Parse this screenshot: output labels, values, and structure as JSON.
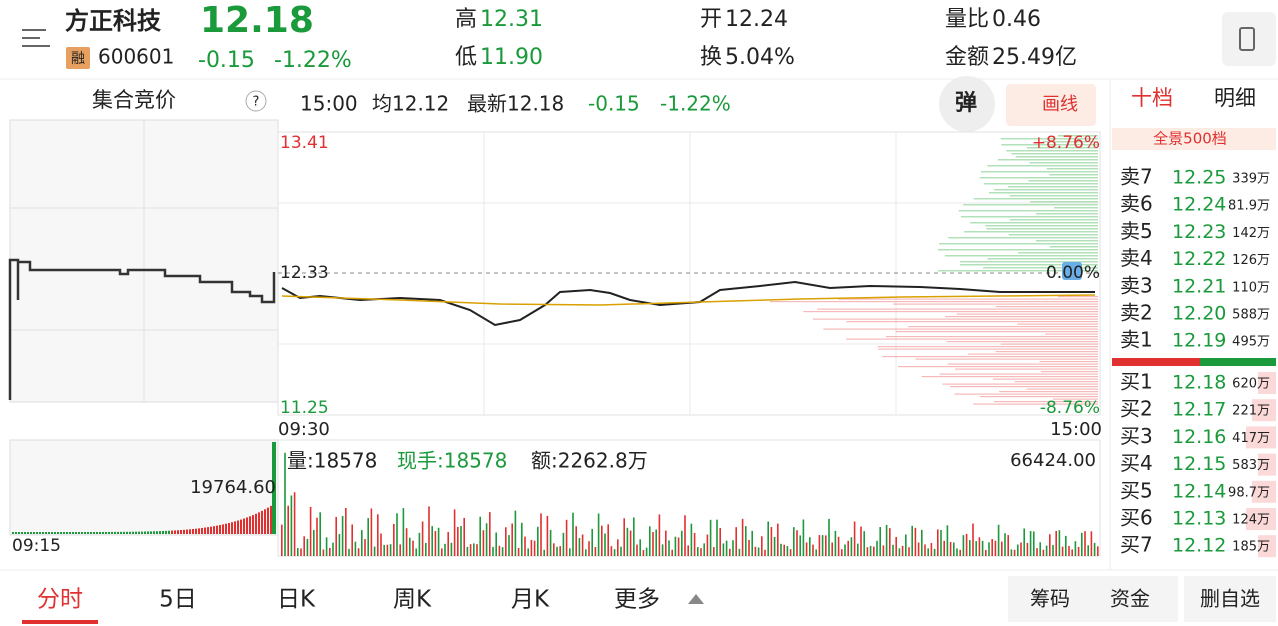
{
  "header": {
    "name": "方正科技",
    "badge": "融",
    "code": "600601",
    "price": "12.18",
    "change": "-0.15",
    "change_pct": "-1.22%"
  },
  "stats": [
    {
      "label": "高",
      "value": "12.31"
    },
    {
      "label": "低",
      "value": "11.90"
    },
    {
      "label": "开",
      "value": "12.24"
    },
    {
      "label": "换",
      "value": "5.04%"
    },
    {
      "label": "量比",
      "value": "0.46"
    },
    {
      "label": "金额",
      "value": "25.49亿"
    }
  ],
  "auction": {
    "title": "集合竞价",
    "volume_max": "19764.60",
    "time": "09:15"
  },
  "info_bar": {
    "time": "15:00",
    "avg": "均12.12",
    "latest": "最新12.18",
    "change": "-0.15",
    "change_pct": "-1.22%",
    "popup": "弹",
    "draw": "画线"
  },
  "chart": {
    "high": "13.41",
    "high_pct": "+8.76%",
    "base": "12.33",
    "base_pct": "0.00%",
    "low": "11.25",
    "low_pct": "-8.76%",
    "start": "09:30",
    "end": "15:00"
  },
  "volume": {
    "volume": "量:18578",
    "current": "现手:18578",
    "amount": "额:2262.8万",
    "max": "66424.00"
  },
  "order_book": {
    "tabs": [
      "十档",
      "明细"
    ],
    "banner": "全景500档",
    "asks": [
      {
        "label": "卖7",
        "price": "12.25",
        "volume": "339万"
      },
      {
        "label": "卖6",
        "price": "12.24",
        "volume": "81.9万"
      },
      {
        "label": "卖5",
        "price": "12.23",
        "volume": "142万"
      },
      {
        "label": "卖4",
        "price": "12.22",
        "volume": "126万"
      },
      {
        "label": "卖3",
        "price": "12.21",
        "volume": "110万"
      },
      {
        "label": "卖2",
        "price": "12.20",
        "volume": "588万"
      },
      {
        "label": "卖1",
        "price": "12.19",
        "volume": "495万"
      }
    ],
    "bids": [
      {
        "label": "买1",
        "price": "12.18",
        "volume": "620万"
      },
      {
        "label": "买2",
        "price": "12.17",
        "volume": "221万"
      },
      {
        "label": "买3",
        "price": "12.16",
        "volume": "417万"
      },
      {
        "label": "买4",
        "price": "12.15",
        "volume": "583万"
      },
      {
        "label": "买5",
        "price": "12.14",
        "volume": "98.7万"
      },
      {
        "label": "买6",
        "price": "12.13",
        "volume": "124万"
      },
      {
        "label": "买7",
        "price": "12.12",
        "volume": "185万"
      }
    ]
  },
  "tabs": [
    "分时",
    "5日",
    "日K",
    "周K",
    "月K",
    "更多"
  ],
  "actions": [
    "筹码",
    "资金",
    "删自选"
  ]
}
